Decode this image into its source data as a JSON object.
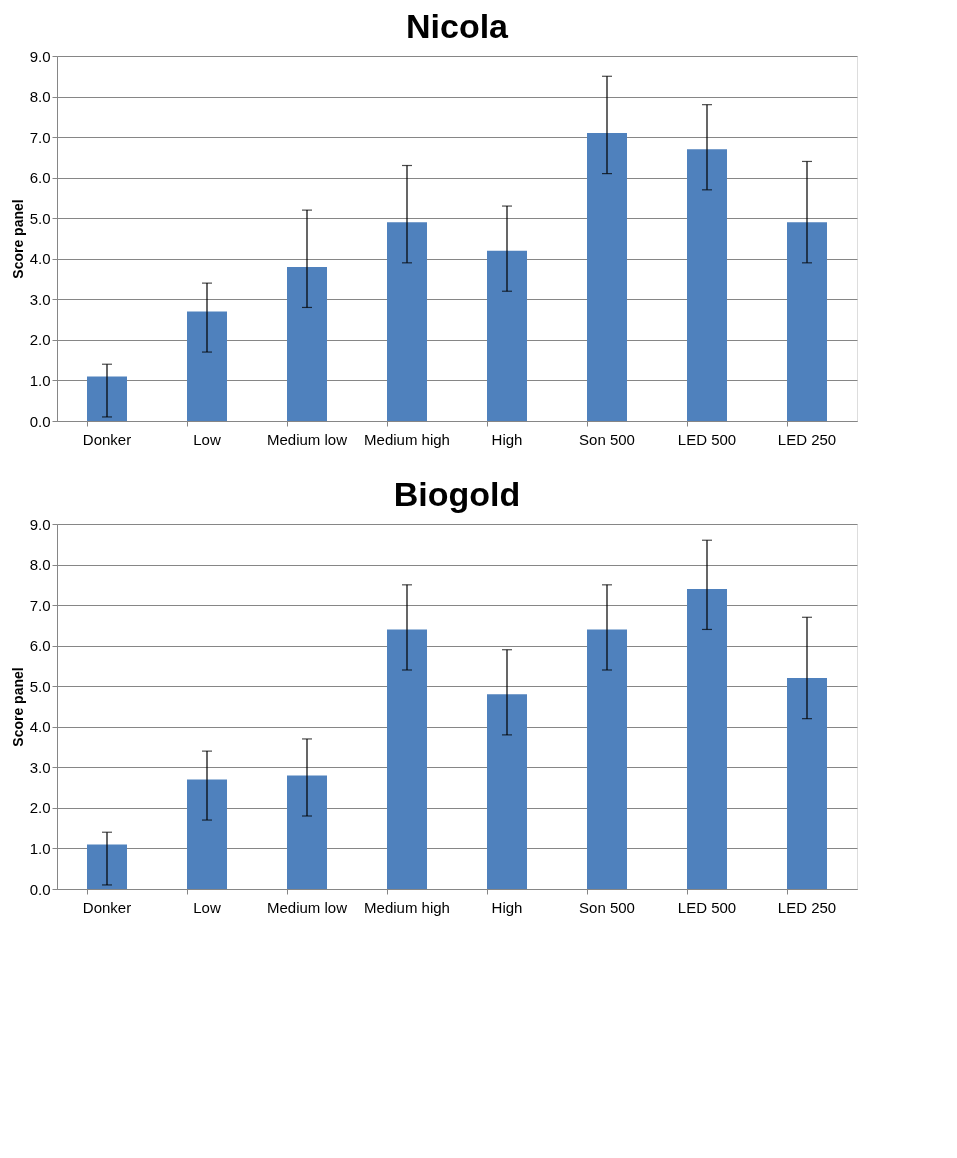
{
  "chart_data": [
    {
      "type": "bar",
      "title": "Nicola",
      "ylabel": "Score panel",
      "categories": [
        "Donker",
        "Low",
        "Medium low",
        "Medium high",
        "High",
        "Son 500",
        "LED 500",
        "LED 250"
      ],
      "values": [
        1.1,
        2.7,
        3.8,
        4.9,
        4.2,
        7.1,
        6.7,
        4.9
      ],
      "errors": [
        [
          0.1,
          1.4
        ],
        [
          1.7,
          3.4
        ],
        [
          2.8,
          5.2
        ],
        [
          3.9,
          6.3
        ],
        [
          3.2,
          5.3
        ],
        [
          6.1,
          8.5
        ],
        [
          5.7,
          7.8
        ],
        [
          3.9,
          6.4
        ]
      ],
      "color": "#4f81bd",
      "ylim": [
        0,
        9
      ],
      "yticks": [
        {
          "value": 0,
          "label": "0.0"
        },
        {
          "value": 1,
          "label": "1.0"
        },
        {
          "value": 2,
          "label": "2.0"
        },
        {
          "value": 3,
          "label": "3.0"
        },
        {
          "value": 4,
          "label": "4.0"
        },
        {
          "value": 5,
          "label": "5.0"
        },
        {
          "value": 6,
          "label": "6.0"
        },
        {
          "value": 7,
          "label": "7.0"
        },
        {
          "value": 8,
          "label": "8.0"
        },
        {
          "value": 9,
          "label": "9.0"
        }
      ],
      "grid": "y"
    },
    {
      "type": "bar",
      "title": "Biogold",
      "ylabel": "Score panel",
      "categories": [
        "Donker",
        "Low",
        "Medium low",
        "Medium high",
        "High",
        "Son 500",
        "LED 500",
        "LED 250"
      ],
      "values": [
        1.1,
        2.7,
        2.8,
        6.4,
        4.8,
        6.4,
        7.4,
        5.2
      ],
      "errors": [
        [
          0.1,
          1.4
        ],
        [
          1.7,
          3.4
        ],
        [
          1.8,
          3.7
        ],
        [
          5.4,
          7.5
        ],
        [
          3.8,
          5.9
        ],
        [
          5.4,
          7.5
        ],
        [
          6.4,
          8.6
        ],
        [
          4.2,
          6.7
        ]
      ],
      "color": "#4f81bd",
      "ylim": [
        0,
        9
      ],
      "yticks": [
        {
          "value": 0,
          "label": "0.0"
        },
        {
          "value": 1,
          "label": "1.0"
        },
        {
          "value": 2,
          "label": "2.0"
        },
        {
          "value": 3,
          "label": "3.0"
        },
        {
          "value": 4,
          "label": "4.0"
        },
        {
          "value": 5,
          "label": "5.0"
        },
        {
          "value": 6,
          "label": "6.0"
        },
        {
          "value": 7,
          "label": "7.0"
        },
        {
          "value": 8,
          "label": "8.0"
        },
        {
          "value": 9,
          "label": "9.0"
        }
      ],
      "grid": "y"
    }
  ]
}
